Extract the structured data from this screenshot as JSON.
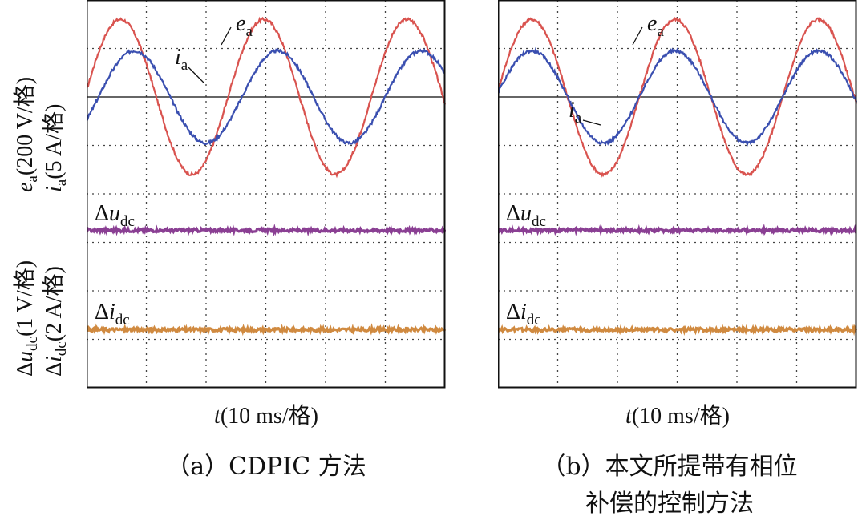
{
  "axis_labels": {
    "y_top_line1": "ea(200 V/格)",
    "y_top_line2": "ia(5 A/格)",
    "y_bottom_line1": "Δudc(1 V/格)",
    "y_bottom_line2": "Δidc(2 A/格)",
    "x": "t(10 ms/格)"
  },
  "colors": {
    "ea": "#d9534f",
    "ia": "#3a4fb0",
    "delta_udc": "#8a3f93",
    "delta_idc": "#d08a40",
    "grid": "#444444"
  },
  "chart_data": [
    {
      "type": "line",
      "panel": "a",
      "caption": "（a）CDPIC 方法",
      "xlabel": "t(10 ms/格)",
      "ylabel": "ea(200 V/格)  ia(5 A/格)  Δudc(1 V/格)  Δidc(2 A/格)",
      "grid": true,
      "grid_divisions": {
        "x": 6,
        "y": 8
      },
      "x_range_div": [
        0,
        6
      ],
      "y_range_div": [
        0,
        8
      ],
      "series": [
        {
          "name": "ea",
          "kind": "sine",
          "amplitude_div": 1.6,
          "offset_div": 6,
          "period_div": 2.4,
          "phase_deg": 5
        },
        {
          "name": "ia",
          "kind": "sine",
          "amplitude_div": 0.95,
          "offset_div": 6,
          "period_div": 2.4,
          "phase_deg": -30
        },
        {
          "name": "Δudc",
          "kind": "flat",
          "offset_div": 3.25
        },
        {
          "name": "Δidc",
          "kind": "flat",
          "offset_div": 1.2
        }
      ],
      "annotations": [
        {
          "text": "ea",
          "series": "ea"
        },
        {
          "text": "ia",
          "series": "ia"
        },
        {
          "text": "Δudc",
          "series": "Δudc"
        },
        {
          "text": "Δidc",
          "series": "Δidc"
        }
      ]
    },
    {
      "type": "line",
      "panel": "b",
      "caption_line1": "（b）本文所提带有相位",
      "caption_line2": "补偿的控制方法",
      "xlabel": "t(10 ms/格)",
      "grid": true,
      "grid_divisions": {
        "x": 6,
        "y": 8
      },
      "x_range_div": [
        0,
        6
      ],
      "y_range_div": [
        0,
        8
      ],
      "series": [
        {
          "name": "ea",
          "kind": "sine",
          "amplitude_div": 1.6,
          "offset_div": 6,
          "period_div": 2.4,
          "phase_deg": 5
        },
        {
          "name": "ia",
          "kind": "sine",
          "amplitude_div": 0.95,
          "offset_div": 6,
          "period_div": 2.4,
          "phase_deg": 5
        },
        {
          "name": "Δudc",
          "kind": "flat",
          "offset_div": 3.25
        },
        {
          "name": "Δidc",
          "kind": "flat",
          "offset_div": 1.2
        }
      ],
      "annotations": [
        {
          "text": "ea",
          "series": "ea"
        },
        {
          "text": "ia",
          "series": "ia"
        },
        {
          "text": "Δudc",
          "series": "Δudc"
        },
        {
          "text": "Δidc",
          "series": "Δidc"
        }
      ]
    }
  ]
}
